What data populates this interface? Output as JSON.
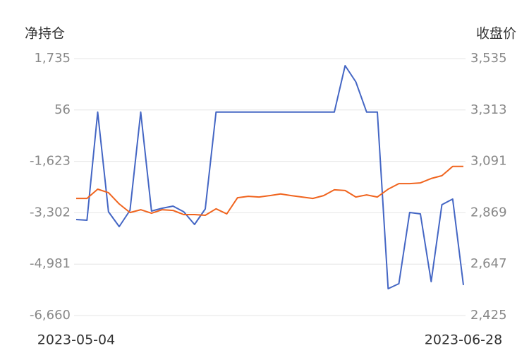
{
  "chart_data": {
    "type": "line",
    "y_label": "净持仓",
    "y2_label": "收盘价",
    "categories": [
      "2023-05-04",
      null,
      null,
      null,
      null,
      null,
      null,
      null,
      null,
      null,
      null,
      null,
      null,
      null,
      null,
      null,
      null,
      null,
      null,
      null,
      null,
      null,
      null,
      null,
      null,
      null,
      null,
      null,
      null,
      null,
      null,
      null,
      null,
      null,
      null,
      null,
      "2023-06-28"
    ],
    "series": [
      {
        "color": "#4466c4",
        "axis": "y",
        "values": [
          -3523,
          -3546,
          -14,
          -3269,
          -3753,
          -3223,
          -14,
          -3246,
          -3154,
          -3085,
          -3269,
          -3684,
          -3177,
          -14,
          -14,
          -14,
          -14,
          -14,
          -14,
          -14,
          -14,
          -14,
          -14,
          -14,
          -14,
          1505,
          974,
          -14,
          -14,
          -5783,
          -5621,
          -3292,
          -3338,
          -5552,
          -3038,
          -2854,
          -5667
        ]
      },
      {
        "color": "#f0641e",
        "axis": "y2",
        "values": [
          2931,
          2931,
          2971,
          2956,
          2907,
          2870,
          2882,
          2867,
          2882,
          2879,
          2861,
          2861,
          2858,
          2886,
          2864,
          2934,
          2940,
          2937,
          2943,
          2950,
          2943,
          2937,
          2931,
          2943,
          2968,
          2965,
          2937,
          2946,
          2937,
          2971,
          2995,
          2995,
          2998,
          3017,
          3029,
          3069,
          3069
        ]
      }
    ],
    "ylim": [
      -6660,
      1735
    ],
    "yticks": [
      {
        "value": -6660,
        "label": "-6,660"
      },
      {
        "value": -4981,
        "label": "-4,981"
      },
      {
        "value": -3302,
        "label": "-3,302"
      },
      {
        "value": -1623,
        "label": "-1,623"
      },
      56,
      {
        "value": 1735,
        "label": "1,735"
      }
    ],
    "y2lim": [
      2425,
      3535
    ],
    "y2ticks": [
      {
        "value": 2425,
        "label": "2,425"
      },
      {
        "value": 2647,
        "label": "2,647"
      },
      {
        "value": 2869,
        "label": "2,869"
      },
      {
        "value": 3091,
        "label": "3,091"
      },
      {
        "value": 3313,
        "label": "3,313"
      },
      {
        "value": 3535,
        "label": "3,535"
      }
    ],
    "grid": true
  }
}
